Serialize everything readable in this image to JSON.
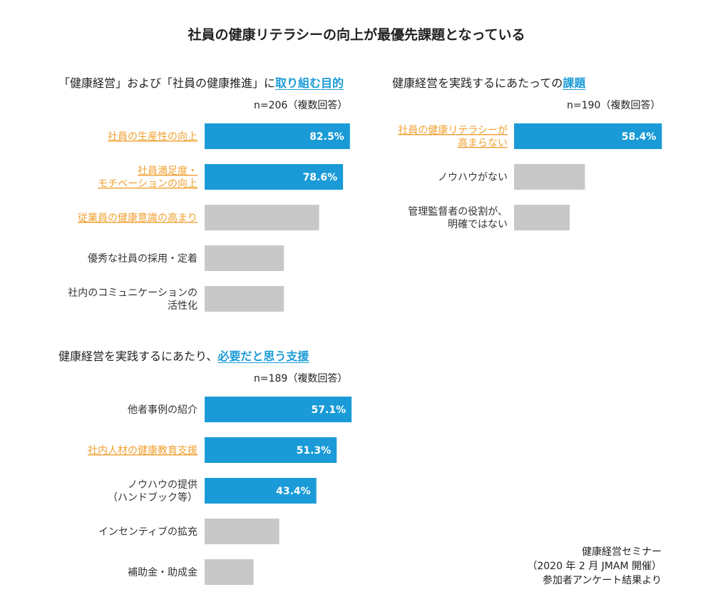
{
  "main_title": "社員の健康リテラシーの向上が最優先課題となっている",
  "colors": {
    "accent_bar": "#1a9bd7",
    "gray_bar": "#c8c8c8",
    "highlight_label": "#f0a030",
    "highlight_title": "#1a9bd7"
  },
  "panels": [
    {
      "title_plain": "「健康経営」および「社員の健康推進」に",
      "title_highlight": "取り組む目的",
      "n_label": "n=206（複数回答）"
    },
    {
      "title_plain": "健康経営を実践するにあたっての",
      "title_highlight": "課題",
      "n_label": "n=190（複数回答）"
    },
    {
      "title_plain": "健康経営を実践するにあたり、",
      "title_highlight": "必要だと思う支援",
      "n_label": "n=189（複数回答）"
    }
  ],
  "chart_data": [
    {
      "type": "bar",
      "orientation": "horizontal",
      "categories": [
        [
          "社員の生産性の向上"
        ],
        [
          "社員満足度・",
          "モチベーションの向上"
        ],
        [
          "従業員の健康意識の高まり"
        ],
        [
          "優秀な社員の採用・定着"
        ],
        [
          "社内のコミュニケーションの",
          "活性化"
        ]
      ],
      "values": [
        82.5,
        78.6,
        65,
        45,
        45
      ],
      "value_labels": [
        "82.5%",
        "78.6%",
        "",
        "",
        ""
      ],
      "highlighted": [
        true,
        true,
        false,
        false,
        false
      ],
      "label_highlighted": [
        true,
        true,
        true,
        false,
        false
      ],
      "xlim": [
        0,
        100
      ]
    },
    {
      "type": "bar",
      "orientation": "horizontal",
      "categories": [
        [
          "社員の健康リテラシーが",
          "高まらない"
        ],
        [
          "ノウハウがない"
        ],
        [
          "管理監督者の役割が、",
          "明確ではない"
        ]
      ],
      "values": [
        58.4,
        28,
        22
      ],
      "value_labels": [
        "58.4%",
        "",
        ""
      ],
      "highlighted": [
        true,
        false,
        false
      ],
      "label_highlighted": [
        true,
        false,
        false
      ],
      "xlim": [
        0,
        100
      ]
    },
    {
      "type": "bar",
      "orientation": "horizontal",
      "categories": [
        [
          "他者事例の紹介"
        ],
        [
          "社内人材の健康教育支援"
        ],
        [
          "ノウハウの提供",
          "（ハンドブック等）"
        ],
        [
          "インセンティブの拡充"
        ],
        [
          "補助金・助成金"
        ]
      ],
      "values": [
        57.1,
        51.3,
        43.4,
        29,
        19
      ],
      "value_labels": [
        "57.1%",
        "51.3%",
        "43.4%",
        "",
        ""
      ],
      "highlighted": [
        true,
        true,
        true,
        false,
        false
      ],
      "label_highlighted": [
        false,
        true,
        false,
        false,
        false
      ],
      "xlim": [
        0,
        100
      ]
    }
  ],
  "source_lines": [
    "健康経営セミナー",
    "（2020 年 2 月 JMAM 開催）",
    "参加者アンケート結果より"
  ]
}
